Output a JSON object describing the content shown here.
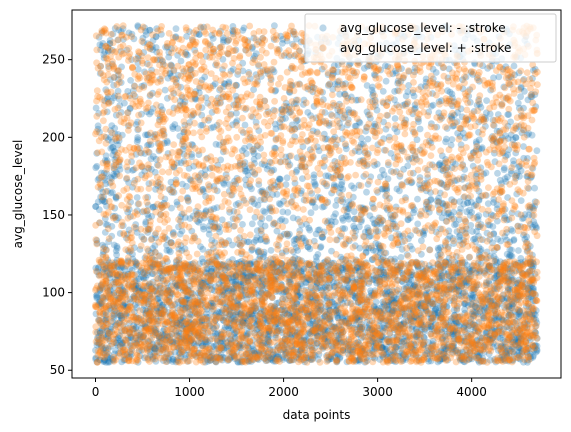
{
  "chart_data": {
    "type": "scatter",
    "title": "",
    "xlabel": "data points",
    "ylabel": "avg_glucose_level",
    "xlim": [
      -250,
      4950
    ],
    "ylim": [
      45,
      282
    ],
    "xticks": [
      0,
      1000,
      2000,
      3000,
      4000
    ],
    "yticks": [
      50,
      100,
      150,
      200,
      250
    ],
    "xtick_labels": [
      "0",
      "1000",
      "2000",
      "3000",
      "4000"
    ],
    "ytick_labels": [
      "50",
      "100",
      "150",
      "200",
      "250"
    ],
    "grid": false,
    "legend_position": "top-right",
    "point_count_per_series": 4700,
    "series": [
      {
        "name": "avg_glucose_level: - :stroke",
        "color": "#1f77b4",
        "opacity": 0.3,
        "distribution": {
          "low_band": [
            55,
            120
          ],
          "low_fraction": 0.62,
          "mid_band": [
            120,
            180
          ],
          "mid_fraction": 0.18,
          "high_band": [
            180,
            272
          ],
          "high_fraction": 0.2
        }
      },
      {
        "name": "avg_glucose_level: + :stroke",
        "color": "#ff7f0e",
        "opacity": 0.3,
        "distribution": {
          "low_band": [
            55,
            120
          ],
          "low_fraction": 0.55,
          "mid_band": [
            120,
            180
          ],
          "mid_fraction": 0.15,
          "high_band": [
            180,
            272
          ],
          "high_fraction": 0.3
        }
      }
    ]
  }
}
